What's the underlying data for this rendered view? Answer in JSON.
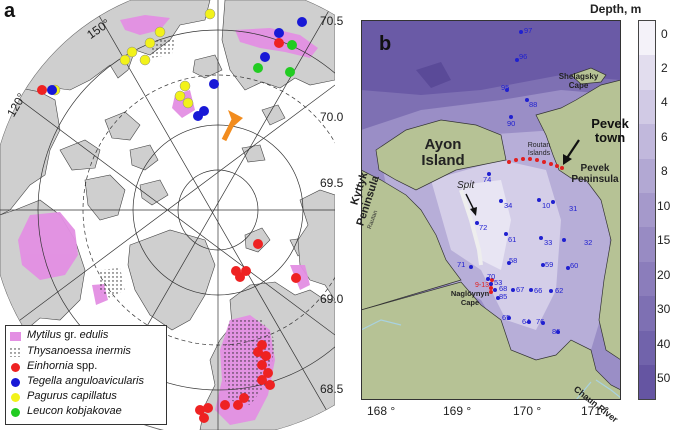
{
  "panel_a": {
    "label": "a",
    "lon_labels": [
      "150°",
      "120°"
    ],
    "legend": [
      {
        "text": "Mytilus",
        "text2": " gr. ",
        "text3": "edulis",
        "kind": "square",
        "color": "#e38fe3"
      },
      {
        "text": "Thysanoessa inermis",
        "kind": "dots",
        "color": "#222222"
      },
      {
        "text": "Einhornia",
        "text2": " spp.",
        "kind": "circle",
        "color": "#ee2222"
      },
      {
        "text": "Tegella anguloavicularis",
        "kind": "circle",
        "color": "#1818d6"
      },
      {
        "text": "Pagurus capillatus",
        "kind": "circle",
        "color": "#f2f21a"
      },
      {
        "text": "Leucon kobjakovae",
        "kind": "circle",
        "color": "#22cc22"
      }
    ]
  },
  "panel_b": {
    "label": "b",
    "y_ticks": [
      "70.5",
      "70.0",
      "69.5",
      "69.0",
      "68.5"
    ],
    "x_ticks": [
      "168 °",
      "169 °",
      "170 °",
      "171 °"
    ],
    "place_labels": {
      "ayon1": "Ayon",
      "ayon2": "Island",
      "kyttyk1": "Kyttyk",
      "kyttyk2": "Peninsula",
      "rautan": "Rautan",
      "spit": "Spit",
      "shelagsky1": "Shelagsky",
      "shelagsky2": "Cape",
      "routan1": "Routan",
      "routan2": "Islands",
      "pevek_town1": "Pevek",
      "pevek_town2": "town",
      "pevek_pen1": "Pevek",
      "pevek_pen2": "Peninsula",
      "naglo1": "Naglöynyn",
      "naglo2": "Cape",
      "chaun": "Chaun River",
      "red_range": "9-13"
    },
    "stations": [
      "97",
      "96",
      "95",
      "88",
      "90",
      "74",
      "34",
      "10",
      "31",
      "72",
      "61",
      "33",
      "32",
      "58",
      "59",
      "60",
      "71",
      "70",
      "53",
      "68",
      "85",
      "67",
      "66",
      "62",
      "65",
      "64",
      "76",
      "86"
    ],
    "depth_scale": {
      "title": "Depth, m",
      "ticks": [
        "0",
        "2",
        "4",
        "6",
        "8",
        "10",
        "15",
        "20",
        "30",
        "40",
        "50"
      ],
      "colors": [
        "#f4f2f9",
        "#e2ddee",
        "#d1cae5",
        "#c1b8dc",
        "#b2a8d3",
        "#a599cb",
        "#988bc3",
        "#8b7dbb",
        "#7e70b3",
        "#7163ab",
        "#6555a2"
      ]
    }
  }
}
